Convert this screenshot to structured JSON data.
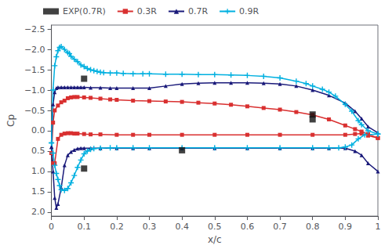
{
  "chart_data": {
    "type": "line",
    "xlabel": "x/c",
    "ylabel": "Cp",
    "xlim": [
      0,
      1
    ],
    "ylim": [
      2.1,
      -2.6
    ],
    "xticks": [
      0,
      0.1,
      0.2,
      0.3,
      0.4,
      0.5,
      0.6,
      0.7,
      0.8,
      0.9,
      1
    ],
    "yticks": [
      {
        "value": -2.5,
        "label": "−2.5"
      },
      {
        "value": -2,
        "label": "−2.0"
      },
      {
        "value": -1.5,
        "label": "−1.5"
      },
      {
        "value": -1,
        "label": "−1.0"
      },
      {
        "value": -0.5,
        "label": "−0.5"
      },
      {
        "value": 0,
        "label": "0.0"
      },
      {
        "value": 0.5,
        "label": "0.5"
      },
      {
        "value": 1,
        "label": "1.0"
      },
      {
        "value": 1.5,
        "label": "1.5"
      },
      {
        "value": 2,
        "label": "2.0"
      }
    ],
    "grid": false,
    "legend": "upper left",
    "series": [
      {
        "name": "0.3R",
        "type": "line",
        "color": "#d93030",
        "marker": "square",
        "x": [
          0.0,
          0.005,
          0.01,
          0.02,
          0.03,
          0.04,
          0.05,
          0.06,
          0.07,
          0.08,
          0.1,
          0.12,
          0.15,
          0.18,
          0.2,
          0.25,
          0.3,
          0.35,
          0.4,
          0.45,
          0.5,
          0.55,
          0.6,
          0.65,
          0.7,
          0.75,
          0.8,
          0.85,
          0.9,
          0.93,
          0.95,
          0.97,
          1.0
        ],
        "values": [
          0.55,
          -0.2,
          -0.5,
          -0.62,
          -0.7,
          -0.74,
          -0.8,
          -0.82,
          -0.83,
          -0.83,
          -0.82,
          -0.81,
          -0.79,
          -0.77,
          -0.76,
          -0.74,
          -0.73,
          -0.72,
          -0.71,
          -0.69,
          -0.67,
          -0.64,
          -0.6,
          -0.56,
          -0.52,
          -0.46,
          -0.39,
          -0.28,
          -0.13,
          -0.04,
          0.02,
          0.08,
          0.18
        ]
      },
      {
        "name": "0.3R",
        "type": "line",
        "color": "#d93030",
        "marker": "square",
        "x": [
          0.0,
          0.005,
          0.01,
          0.02,
          0.03,
          0.04,
          0.05,
          0.06,
          0.07,
          0.08,
          0.1,
          0.12,
          0.15,
          0.2,
          0.25,
          0.3,
          0.4,
          0.5,
          0.6,
          0.7,
          0.8,
          0.9,
          0.93,
          0.95,
          0.97,
          1.0
        ],
        "values": [
          0.55,
          0.8,
          0.8,
          0.2,
          0.1,
          0.07,
          0.06,
          0.06,
          0.07,
          0.07,
          0.08,
          0.09,
          0.09,
          0.1,
          0.1,
          0.1,
          0.1,
          0.1,
          0.1,
          0.1,
          0.1,
          0.1,
          0.08,
          0.07,
          0.12,
          0.18
        ]
      },
      {
        "name": "0.7R",
        "type": "line",
        "color": "#1a1a7a",
        "marker": "triangle",
        "x": [
          0.0,
          0.005,
          0.01,
          0.015,
          0.02,
          0.03,
          0.04,
          0.05,
          0.06,
          0.07,
          0.08,
          0.09,
          0.1,
          0.12,
          0.15,
          0.18,
          0.2,
          0.25,
          0.3,
          0.35,
          0.4,
          0.45,
          0.5,
          0.55,
          0.6,
          0.65,
          0.7,
          0.75,
          0.8,
          0.85,
          0.9,
          0.93,
          0.95,
          0.97,
          1.0
        ],
        "values": [
          0.4,
          -0.65,
          -0.95,
          -1.05,
          -1.07,
          -1.07,
          -1.07,
          -1.07,
          -1.07,
          -1.07,
          -1.07,
          -1.07,
          -1.07,
          -1.06,
          -1.06,
          -1.05,
          -1.05,
          -1.05,
          -1.05,
          -1.1,
          -1.15,
          -1.17,
          -1.18,
          -1.18,
          -1.18,
          -1.17,
          -1.15,
          -1.1,
          -1.0,
          -0.87,
          -0.68,
          -0.48,
          -0.3,
          -0.1,
          0.05
        ]
      },
      {
        "name": "0.7R",
        "type": "line",
        "color": "#1a1a7a",
        "marker": "triangle",
        "x": [
          0.0,
          0.005,
          0.01,
          0.015,
          0.02,
          0.03,
          0.04,
          0.05,
          0.06,
          0.07,
          0.08,
          0.09,
          0.1,
          0.12,
          0.15,
          0.2,
          0.25,
          0.3,
          0.4,
          0.5,
          0.6,
          0.7,
          0.8,
          0.85,
          0.9,
          0.93,
          0.95,
          0.97,
          1.0
        ],
        "values": [
          0.4,
          1.0,
          1.65,
          1.9,
          1.8,
          1.4,
          0.85,
          0.6,
          0.52,
          0.47,
          0.44,
          0.43,
          0.43,
          0.43,
          0.43,
          0.43,
          0.43,
          0.43,
          0.43,
          0.43,
          0.43,
          0.43,
          0.43,
          0.43,
          0.43,
          0.5,
          0.6,
          0.8,
          1.0
        ]
      },
      {
        "name": "0.9R",
        "type": "line",
        "color": "#00b0e0",
        "marker": "plus",
        "x": [
          0.0,
          0.005,
          0.01,
          0.015,
          0.02,
          0.025,
          0.03,
          0.04,
          0.05,
          0.055,
          0.06,
          0.07,
          0.08,
          0.09,
          0.1,
          0.11,
          0.12,
          0.13,
          0.14,
          0.15,
          0.16,
          0.18,
          0.2,
          0.22,
          0.25,
          0.28,
          0.3,
          0.35,
          0.4,
          0.45,
          0.5,
          0.55,
          0.6,
          0.65,
          0.7,
          0.75,
          0.78,
          0.8,
          0.83,
          0.85,
          0.87,
          0.9,
          0.92,
          0.94,
          0.95,
          0.97,
          1.0
        ],
        "values": [
          0.3,
          -1.0,
          -1.6,
          -1.82,
          -1.97,
          -2.05,
          -2.07,
          -2.0,
          -1.92,
          -1.9,
          -1.83,
          -1.76,
          -1.7,
          -1.62,
          -1.58,
          -1.53,
          -1.5,
          -1.48,
          -1.46,
          -1.44,
          -1.43,
          -1.42,
          -1.42,
          -1.41,
          -1.4,
          -1.4,
          -1.4,
          -1.39,
          -1.39,
          -1.38,
          -1.38,
          -1.37,
          -1.36,
          -1.34,
          -1.3,
          -1.22,
          -1.16,
          -1.1,
          -1.02,
          -0.95,
          -0.85,
          -0.65,
          -0.48,
          -0.25,
          -0.15,
          0.0,
          0.08
        ]
      },
      {
        "name": "0.9R",
        "type": "line",
        "color": "#00b0e0",
        "marker": "plus",
        "x": [
          0.0,
          0.005,
          0.01,
          0.015,
          0.02,
          0.025,
          0.03,
          0.04,
          0.05,
          0.06,
          0.07,
          0.08,
          0.09,
          0.1,
          0.11,
          0.12,
          0.13,
          0.15,
          0.18,
          0.2,
          0.25,
          0.3,
          0.4,
          0.5,
          0.6,
          0.7,
          0.8,
          0.85,
          0.88,
          0.9,
          0.92,
          0.94,
          0.96,
          1.0
        ],
        "values": [
          0.3,
          0.55,
          0.85,
          1.05,
          1.2,
          1.35,
          1.45,
          1.47,
          1.42,
          1.28,
          1.1,
          0.9,
          0.72,
          0.57,
          0.5,
          0.46,
          0.44,
          0.43,
          0.42,
          0.42,
          0.42,
          0.42,
          0.42,
          0.42,
          0.42,
          0.42,
          0.42,
          0.42,
          0.42,
          0.4,
          0.35,
          0.2,
          0.1,
          0.08
        ]
      },
      {
        "name": "EXP(0.7R)",
        "type": "scatter",
        "color": "#111111",
        "marker": "square",
        "x": [
          0.1,
          0.1,
          0.4,
          0.8,
          0.8
        ],
        "values": [
          -1.28,
          0.93,
          0.48,
          -0.4,
          -0.28
        ]
      }
    ]
  }
}
